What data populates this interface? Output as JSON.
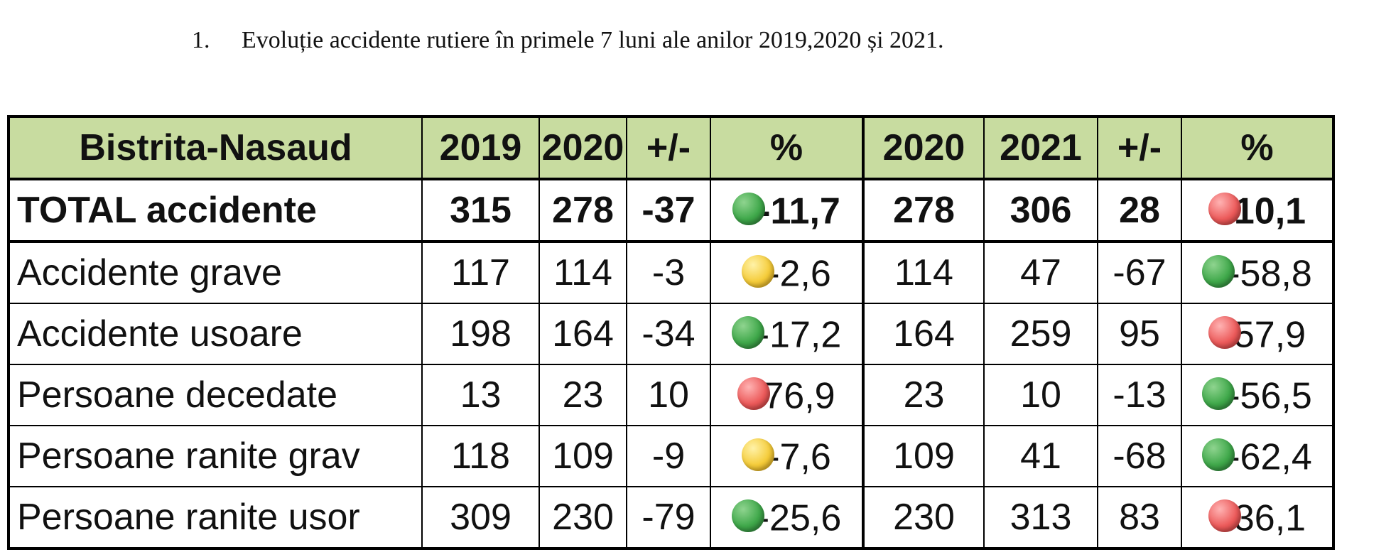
{
  "heading": {
    "number": "1.",
    "text": "Evoluție accidente rutiere în primele 7 luni ale anilor 2019,2020 și 2021."
  },
  "table": {
    "headers": [
      "Bistrita-Nasaud",
      "2019",
      "2020",
      "+/-",
      "%",
      "2020",
      "2021",
      "+/-",
      "%"
    ],
    "rows": [
      {
        "label": "TOTAL accidente",
        "a": "315",
        "b": "278",
        "d1": "-37",
        "p1": "-11,7",
        "i1": "green",
        "c": "278",
        "e": "306",
        "d2": "28",
        "p2": "10,1",
        "i2": "red"
      },
      {
        "label": "Accidente grave",
        "a": "117",
        "b": "114",
        "d1": "-3",
        "p1": "-2,6",
        "i1": "yellow",
        "c": "114",
        "e": "47",
        "d2": "-67",
        "p2": "-58,8",
        "i2": "green"
      },
      {
        "label": "Accidente usoare",
        "a": "198",
        "b": "164",
        "d1": "-34",
        "p1": "-17,2",
        "i1": "green",
        "c": "164",
        "e": "259",
        "d2": "95",
        "p2": "57,9",
        "i2": "red"
      },
      {
        "label": "Persoane decedate",
        "a": "13",
        "b": "23",
        "d1": "10",
        "p1": "76,9",
        "i1": "red",
        "c": "23",
        "e": "10",
        "d2": "-13",
        "p2": "-56,5",
        "i2": "green"
      },
      {
        "label": "Persoane ranite grav",
        "a": "118",
        "b": "109",
        "d1": "-9",
        "p1": "-7,6",
        "i1": "yellow",
        "c": "109",
        "e": "41",
        "d2": "-68",
        "p2": "-62,4",
        "i2": "green"
      },
      {
        "label": "Persoane ranite usor",
        "a": "309",
        "b": "230",
        "d1": "-79",
        "p1": "-25,6",
        "i1": "green",
        "c": "230",
        "e": "313",
        "d2": "83",
        "p2": "36,1",
        "i2": "red"
      }
    ]
  },
  "colors": {
    "header_bg": "#c8dca0",
    "indicator_green": "#3fa84a",
    "indicator_yellow": "#f5cc3a",
    "indicator_red": "#ec5a5a"
  }
}
